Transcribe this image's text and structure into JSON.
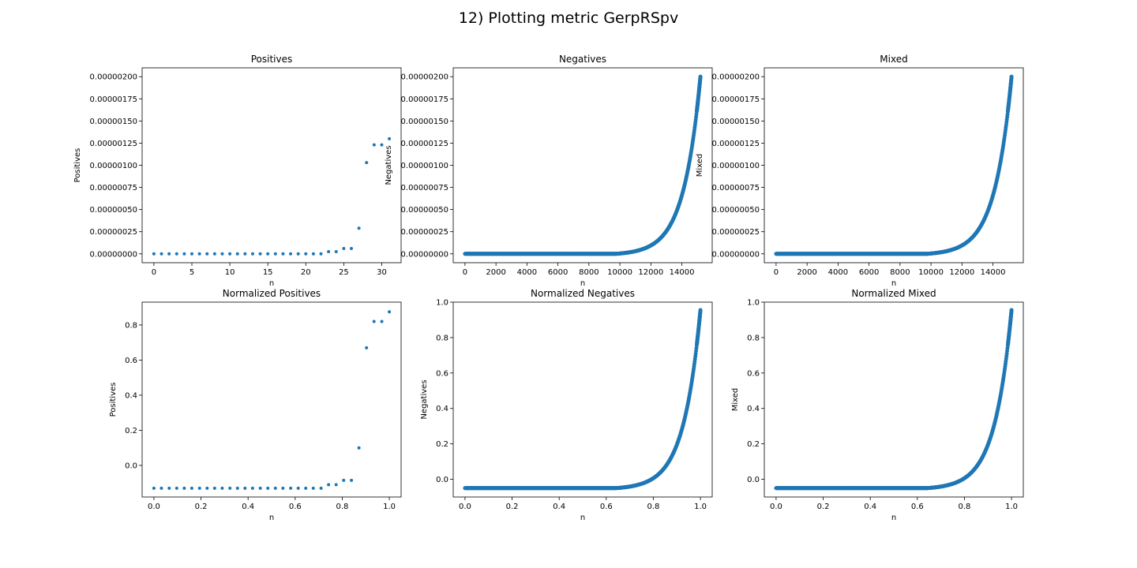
{
  "figure": {
    "suptitle": "12) Plotting metric GerpRSpv",
    "marker_color": "#1f77b4"
  },
  "chart_data": [
    {
      "type": "scatter",
      "title": "Positives",
      "xlabel": "n",
      "ylabel": "Positives",
      "xlim": [
        -1.55,
        32.55
      ],
      "ylim": [
        -1e-07,
        2.1e-06
      ],
      "xticks": [
        "0",
        "5",
        "10",
        "15",
        "20",
        "25",
        "30"
      ],
      "yticks": [
        "0.00000000",
        "0.00000025",
        "0.00000050",
        "0.00000075",
        "0.00000100",
        "0.00000125",
        "0.00000150",
        "0.00000175",
        "0.00000200"
      ],
      "x": [
        0,
        1,
        2,
        3,
        4,
        5,
        6,
        7,
        8,
        9,
        10,
        11,
        12,
        13,
        14,
        15,
        16,
        17,
        18,
        19,
        20,
        21,
        22,
        23,
        24,
        25,
        26,
        27,
        28,
        29,
        30,
        31
      ],
      "y": [
        0,
        0,
        0,
        0,
        0,
        0,
        0,
        0,
        0,
        0,
        0,
        0,
        0,
        0,
        0,
        0,
        0,
        0,
        0,
        0,
        0,
        0,
        0,
        2.5e-08,
        2.5e-08,
        6e-08,
        6e-08,
        2.9e-07,
        1.03e-06,
        1.23e-06,
        1.23e-06,
        1.3e-06
      ]
    },
    {
      "type": "scatter",
      "title": "Negatives",
      "xlabel": "n",
      "ylabel": "Negatives",
      "xlim": [
        -760,
        15960
      ],
      "ylim": [
        -1e-07,
        2.1e-06
      ],
      "xticks": [
        "0",
        "2000",
        "4000",
        "6000",
        "8000",
        "10000",
        "12000",
        "14000"
      ],
      "yticks": [
        "0.00000000",
        "0.00000025",
        "0.00000050",
        "0.00000075",
        "0.00000100",
        "0.00000125",
        "0.00000150",
        "0.00000175",
        "0.00000200"
      ],
      "curve": {
        "n_max": 15200,
        "y_max": 2e-06,
        "start_fraction": 0.64,
        "shape": "exponential-rise"
      }
    },
    {
      "type": "scatter",
      "title": "Mixed",
      "xlabel": "n",
      "ylabel": "Mixed",
      "xlim": [
        -760,
        15960
      ],
      "ylim": [
        -1e-07,
        2.1e-06
      ],
      "xticks": [
        "0",
        "2000",
        "4000",
        "6000",
        "8000",
        "10000",
        "12000",
        "14000"
      ],
      "yticks": [
        "0.00000000",
        "0.00000025",
        "0.00000050",
        "0.00000075",
        "0.00000100",
        "0.00000125",
        "0.00000150",
        "0.00000175",
        "0.00000200"
      ],
      "curve": {
        "n_max": 15200,
        "y_max": 2e-06,
        "start_fraction": 0.64,
        "shape": "exponential-rise"
      }
    },
    {
      "type": "scatter",
      "title": "Normalized Positives",
      "xlabel": "n",
      "ylabel": "Positives",
      "xlim": [
        -0.05,
        1.05
      ],
      "ylim": [
        -0.18,
        0.93
      ],
      "xticks": [
        "0.0",
        "0.2",
        "0.4",
        "0.6",
        "0.8",
        "1.0"
      ],
      "yticks": [
        "0.0",
        "0.2",
        "0.4",
        "0.6",
        "0.8"
      ],
      "x": [
        0,
        0.032,
        0.065,
        0.097,
        0.129,
        0.161,
        0.194,
        0.226,
        0.258,
        0.29,
        0.323,
        0.355,
        0.387,
        0.419,
        0.452,
        0.484,
        0.516,
        0.548,
        0.581,
        0.613,
        0.645,
        0.677,
        0.71,
        0.742,
        0.774,
        0.806,
        0.839,
        0.871,
        0.903,
        0.935,
        0.968,
        1.0
      ],
      "y": [
        -0.13,
        -0.13,
        -0.13,
        -0.13,
        -0.13,
        -0.13,
        -0.13,
        -0.13,
        -0.13,
        -0.13,
        -0.13,
        -0.13,
        -0.13,
        -0.13,
        -0.13,
        -0.13,
        -0.13,
        -0.13,
        -0.13,
        -0.13,
        -0.13,
        -0.13,
        -0.13,
        -0.11,
        -0.11,
        -0.085,
        -0.085,
        0.1,
        0.67,
        0.82,
        0.82,
        0.875
      ]
    },
    {
      "type": "scatter",
      "title": "Normalized Negatives",
      "xlabel": "n",
      "ylabel": "Negatives",
      "xlim": [
        -0.05,
        1.05
      ],
      "ylim": [
        -0.1,
        1.0
      ],
      "xticks": [
        "0.0",
        "0.2",
        "0.4",
        "0.6",
        "0.8",
        "1.0"
      ],
      "yticks": [
        "0.0",
        "0.2",
        "0.4",
        "0.6",
        "0.8",
        "1.0"
      ],
      "curve": {
        "n_max": 1.0,
        "y_min": -0.05,
        "y_max": 0.955,
        "start_fraction": 0.64,
        "shape": "exponential-rise"
      }
    },
    {
      "type": "scatter",
      "title": "Normalized Mixed",
      "xlabel": "n",
      "ylabel": "Mixed",
      "xlim": [
        -0.05,
        1.05
      ],
      "ylim": [
        -0.1,
        1.0
      ],
      "xticks": [
        "0.0",
        "0.2",
        "0.4",
        "0.6",
        "0.8",
        "1.0"
      ],
      "yticks": [
        "0.0",
        "0.2",
        "0.4",
        "0.6",
        "0.8",
        "1.0"
      ],
      "curve": {
        "n_max": 1.0,
        "y_min": -0.05,
        "y_max": 0.955,
        "start_fraction": 0.64,
        "shape": "exponential-rise"
      }
    }
  ]
}
